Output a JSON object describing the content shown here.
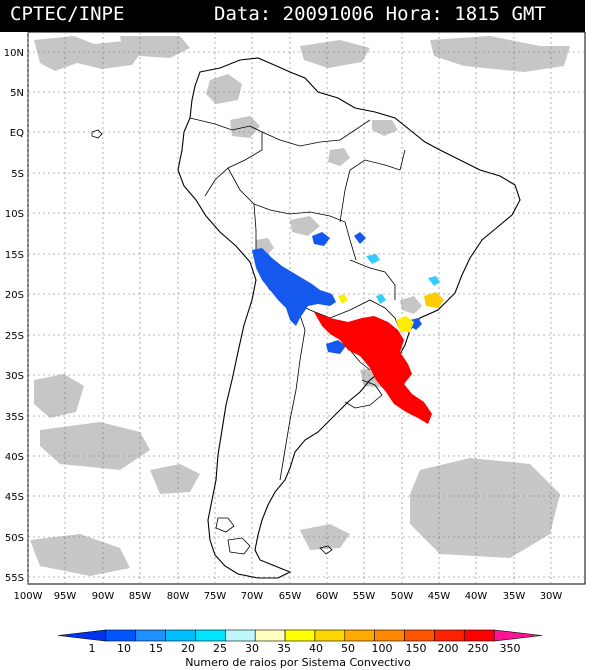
{
  "header": {
    "source": "CPTEC/INPE",
    "date_label": "Data:",
    "date_value": "20091006",
    "time_label": "Hora:",
    "time_value": "1815",
    "timezone": "GMT"
  },
  "map": {
    "lat_labels": [
      "10N",
      "5N",
      "EQ",
      "5S",
      "10S",
      "15S",
      "20S",
      "25S",
      "30S",
      "35S",
      "40S",
      "45S",
      "50S",
      "55S"
    ],
    "lon_labels": [
      "100W",
      "95W",
      "90W",
      "85W",
      "80W",
      "75W",
      "70W",
      "65W",
      "60W",
      "55W",
      "50W",
      "45W",
      "40W",
      "35W",
      "30W"
    ],
    "lat_values": [
      10,
      5,
      0,
      -5,
      -10,
      -15,
      -20,
      -25,
      -30,
      -35,
      -40,
      -45,
      -50,
      -55
    ],
    "lon_values": [
      -100,
      -95,
      -90,
      -85,
      -80,
      -75,
      -70,
      -65,
      -60,
      -55,
      -50,
      -45,
      -40,
      -35,
      -30
    ]
  },
  "colorbar": {
    "ticks": [
      "1",
      "10",
      "15",
      "20",
      "25",
      "30",
      "35",
      "40",
      "50",
      "100",
      "150",
      "200",
      "250",
      "350"
    ],
    "colors": [
      "#0033ee",
      "#0055ff",
      "#1e90ff",
      "#00bfff",
      "#00e5ff",
      "#c0f7ff",
      "#ffffc0",
      "#ffff00",
      "#ffd700",
      "#ffaa00",
      "#ff8800",
      "#ff5500",
      "#ff2200",
      "#ff0000",
      "#ff1493"
    ],
    "label": "Numero de raios por Sistema Convectivo"
  },
  "colors": {
    "blue_systems": "#1558ee",
    "red_systems": "#ff0000",
    "yellow_systems": "#ffee00",
    "cyan_systems": "#33ccff",
    "cloud_gray": "#b8b8b8"
  }
}
